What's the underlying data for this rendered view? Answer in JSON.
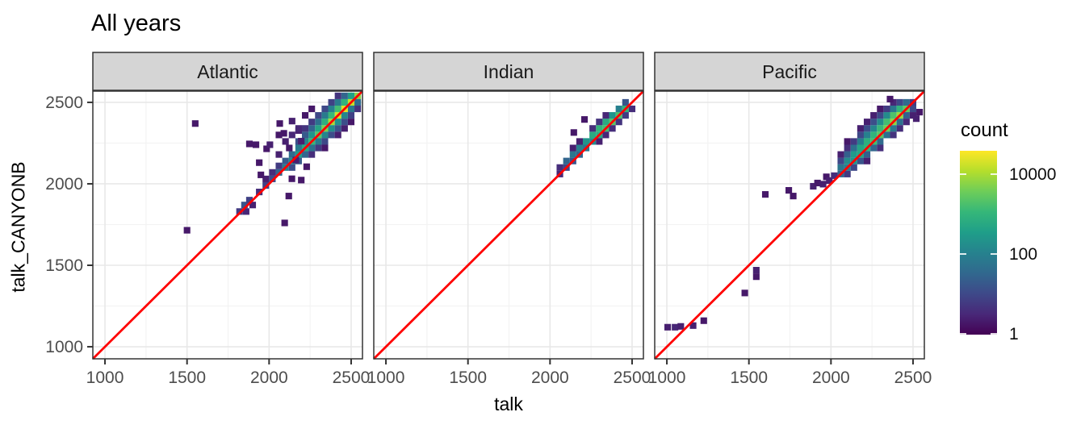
{
  "title": "All years",
  "axes": {
    "x_title": "talk",
    "y_title": "talk_CANYONB",
    "x_ticks": [
      1000,
      1500,
      2000,
      2500
    ],
    "y_ticks": [
      1000,
      1500,
      2000,
      2500
    ],
    "minor_ticks": [
      1250,
      1750,
      2250
    ],
    "domain": [
      926,
      2569
    ]
  },
  "legend": {
    "title": "count",
    "ticks": [
      {
        "label": "10000",
        "log10": 4
      },
      {
        "label": "100",
        "log10": 2
      },
      {
        "label": "1",
        "log10": 0
      }
    ],
    "max_log10": 4.6,
    "scale": "log10",
    "viridis_stops": [
      "#440154",
      "#482878",
      "#3e4989",
      "#31688e",
      "#26828e",
      "#1f9e89",
      "#35b779",
      "#6dcd59",
      "#b4de2c",
      "#fde725"
    ]
  },
  "colors": {
    "identity_line": "#ff0000",
    "strip_fill": "#d5d5d5",
    "strip_text": "#1a1a1a",
    "panel_border": "#333333",
    "grid_major": "#e8e8e8",
    "grid_minor": "#f3f3f3",
    "tick_mark": "#333333",
    "tick_text": "#4d4d4d"
  },
  "chart_data": {
    "type": "heatmap",
    "subtype": "bin2d",
    "title": "All years",
    "xlabel": "talk",
    "ylabel": "talk_CANYONB",
    "xlim": [
      926,
      2569
    ],
    "ylim": [
      926,
      2569
    ],
    "bin_size": 40,
    "bin_value_units": "log10(count)",
    "legend_title": "count",
    "identity_line": {
      "slope": 1,
      "intercept": 0,
      "color": "#ff0000"
    },
    "facets": [
      {
        "label": "Atlantic",
        "bins": [
          [
            2100,
            2100,
            2
          ],
          [
            2140,
            2140,
            2.2
          ],
          [
            2180,
            2180,
            2.5
          ],
          [
            2220,
            2220,
            2.8
          ],
          [
            2260,
            2260,
            3.1
          ],
          [
            2300,
            2300,
            3.4
          ],
          [
            2340,
            2340,
            3.7
          ],
          [
            2380,
            2380,
            4
          ],
          [
            2420,
            2420,
            4.3
          ],
          [
            2460,
            2460,
            4.4
          ],
          [
            2500,
            2500,
            4.2
          ],
          [
            2540,
            2540,
            3.8
          ],
          [
            2100,
            2140,
            1.3
          ],
          [
            2140,
            2180,
            1.6
          ],
          [
            2180,
            2220,
            1.9
          ],
          [
            2220,
            2260,
            2.1
          ],
          [
            2260,
            2300,
            2.4
          ],
          [
            2300,
            2340,
            2.7
          ],
          [
            2340,
            2380,
            2.9
          ],
          [
            2380,
            2420,
            3.1
          ],
          [
            2420,
            2460,
            3.2
          ],
          [
            2460,
            2500,
            3
          ],
          [
            2500,
            2540,
            2.6
          ],
          [
            2180,
            2260,
            1.1
          ],
          [
            2220,
            2300,
            1.3
          ],
          [
            2260,
            2340,
            1.5
          ],
          [
            2300,
            2380,
            1.7
          ],
          [
            2340,
            2420,
            1.9
          ],
          [
            2380,
            2460,
            2
          ],
          [
            2420,
            2500,
            1.9
          ],
          [
            2460,
            2540,
            1.5
          ],
          [
            2220,
            2340,
            0.7
          ],
          [
            2260,
            2380,
            0.8
          ],
          [
            2300,
            2420,
            1
          ],
          [
            2340,
            2460,
            1
          ],
          [
            2380,
            2500,
            0.9
          ],
          [
            2420,
            2540,
            0.7
          ],
          [
            2140,
            2100,
            1.1
          ],
          [
            2180,
            2140,
            1.3
          ],
          [
            2220,
            2180,
            1.5
          ],
          [
            2260,
            2220,
            1.7
          ],
          [
            2300,
            2260,
            1.9
          ],
          [
            2340,
            2300,
            2.1
          ],
          [
            2380,
            2340,
            2.2
          ],
          [
            2420,
            2380,
            2.3
          ],
          [
            2460,
            2420,
            2.1
          ],
          [
            2500,
            2460,
            1.8
          ],
          [
            2540,
            2500,
            1.6
          ],
          [
            2260,
            2180,
            0.6
          ],
          [
            2300,
            2220,
            0.8
          ],
          [
            2340,
            2260,
            1
          ],
          [
            2380,
            2300,
            1.1
          ],
          [
            2420,
            2340,
            1.2
          ],
          [
            2460,
            2380,
            1.1
          ],
          [
            2500,
            2420,
            0.9
          ],
          [
            2540,
            2460,
            0.7
          ],
          [
            2340,
            2220,
            0.3
          ],
          [
            2420,
            2300,
            0.4
          ],
          [
            2460,
            2340,
            0.4
          ],
          [
            2500,
            2380,
            0.3
          ],
          [
            1820,
            1830,
            0.8
          ],
          [
            1850,
            1870,
            1.2
          ],
          [
            1860,
            1830,
            0.5
          ],
          [
            1880,
            1900,
            0.9
          ],
          [
            1900,
            1870,
            0.4
          ],
          [
            1940,
            1950,
            0.6
          ],
          [
            1980,
            1990,
            0.9
          ],
          [
            2020,
            2030,
            1.1
          ],
          [
            2060,
            2070,
            1.5
          ],
          [
            2060,
            2110,
            0.8
          ],
          [
            2020,
            2070,
            0.6
          ],
          [
            1980,
            2030,
            0.4
          ],
          [
            1880,
            2245,
            0.3
          ],
          [
            1920,
            2240,
            0.3
          ],
          [
            1985,
            2215,
            0.3
          ],
          [
            2005,
            2240,
            0.4
          ],
          [
            1940,
            2130,
            0.3
          ],
          [
            1950,
            2055,
            0.3
          ],
          [
            2065,
            2370,
            0.3
          ],
          [
            2090,
            2310,
            0.3
          ],
          [
            2140,
            2385,
            0.4
          ],
          [
            2180,
            2327,
            0.4
          ],
          [
            2123,
            2220,
            0.3
          ],
          [
            2196,
            2262,
            0.4
          ],
          [
            2163,
            2146,
            0.4
          ],
          [
            2229,
            2105,
            0.3
          ],
          [
            2139,
            2031,
            0.3
          ],
          [
            2196,
            2023,
            0.3
          ],
          [
            2100,
            2260,
            0.4
          ],
          [
            2060,
            2180,
            0.4
          ],
          [
            2140,
            2300,
            0.5
          ],
          [
            2180,
            2340,
            0.5
          ],
          [
            2220,
            2420,
            0.3
          ],
          [
            2260,
            2460,
            0.3
          ],
          [
            2060,
            2300,
            0.3
          ],
          [
            1550,
            2370,
            0.3
          ],
          [
            1500,
            1715,
            0.3
          ],
          [
            2120,
            1925,
            0.3
          ],
          [
            2095,
            1760,
            0.3
          ]
        ]
      },
      {
        "label": "Indian",
        "bins": [
          [
            2100,
            2100,
            1
          ],
          [
            2140,
            2140,
            1.2
          ],
          [
            2180,
            2180,
            1.5
          ],
          [
            2220,
            2220,
            1.8
          ],
          [
            2260,
            2260,
            2.2
          ],
          [
            2300,
            2300,
            2.8
          ],
          [
            2340,
            2340,
            3.2
          ],
          [
            2380,
            2380,
            3.4
          ],
          [
            2420,
            2420,
            3.3
          ],
          [
            2460,
            2460,
            3
          ],
          [
            2060,
            2100,
            0.6
          ],
          [
            2100,
            2140,
            1.5
          ],
          [
            2140,
            2180,
            1.8
          ],
          [
            2180,
            2220,
            2
          ],
          [
            2220,
            2260,
            2.4
          ],
          [
            2260,
            2300,
            2.8
          ],
          [
            2300,
            2340,
            3
          ],
          [
            2340,
            2380,
            2.8
          ],
          [
            2380,
            2420,
            2.4
          ],
          [
            2420,
            2460,
            2
          ],
          [
            2460,
            2500,
            1.2
          ],
          [
            2180,
            2260,
            0.4
          ],
          [
            2260,
            2340,
            0.6
          ],
          [
            2300,
            2380,
            0.7
          ],
          [
            2340,
            2420,
            0.5
          ],
          [
            2140,
            2220,
            0.4
          ],
          [
            2300,
            2260,
            0.4
          ],
          [
            2340,
            2300,
            0.5
          ],
          [
            2380,
            2340,
            0.6
          ],
          [
            2420,
            2380,
            0.7
          ],
          [
            2460,
            2420,
            0.8
          ],
          [
            2500,
            2460,
            0.6
          ],
          [
            2060,
            2060,
            0.5
          ],
          [
            2210,
            2395,
            0.3
          ],
          [
            2145,
            2315,
            0.3
          ]
        ]
      },
      {
        "label": "Pacific",
        "bins": [
          [
            2060,
            2060,
            1.5
          ],
          [
            2100,
            2100,
            2
          ],
          [
            2140,
            2140,
            2.4
          ],
          [
            2180,
            2180,
            2.7
          ],
          [
            2220,
            2220,
            3
          ],
          [
            2260,
            2260,
            3.2
          ],
          [
            2300,
            2300,
            3.4
          ],
          [
            2340,
            2340,
            3.6
          ],
          [
            2380,
            2380,
            3.8
          ],
          [
            2420,
            2420,
            3.9
          ],
          [
            2460,
            2460,
            3.5
          ],
          [
            2060,
            2100,
            1.8
          ],
          [
            2100,
            2140,
            2.2
          ],
          [
            2140,
            2180,
            2.5
          ],
          [
            2180,
            2220,
            2.7
          ],
          [
            2220,
            2260,
            2.9
          ],
          [
            2260,
            2300,
            3
          ],
          [
            2300,
            2340,
            3.1
          ],
          [
            2340,
            2380,
            3.2
          ],
          [
            2380,
            2420,
            3.3
          ],
          [
            2420,
            2460,
            3
          ],
          [
            2460,
            2500,
            1.6
          ],
          [
            2060,
            2140,
            1
          ],
          [
            2100,
            2180,
            1.4
          ],
          [
            2140,
            2220,
            1.7
          ],
          [
            2180,
            2260,
            1.9
          ],
          [
            2220,
            2300,
            2
          ],
          [
            2260,
            2340,
            2.1
          ],
          [
            2300,
            2380,
            2.2
          ],
          [
            2340,
            2420,
            2.2
          ],
          [
            2380,
            2460,
            1.8
          ],
          [
            2420,
            2500,
            1
          ],
          [
            2100,
            2220,
            0.6
          ],
          [
            2140,
            2260,
            0.8
          ],
          [
            2180,
            2300,
            1
          ],
          [
            2220,
            2340,
            1.1
          ],
          [
            2260,
            2380,
            1.1
          ],
          [
            2300,
            2420,
            1
          ],
          [
            2340,
            2460,
            0.8
          ],
          [
            2380,
            2500,
            0.5
          ],
          [
            2180,
            2340,
            0.4
          ],
          [
            2220,
            2380,
            0.4
          ],
          [
            2260,
            2420,
            0.4
          ],
          [
            2300,
            2460,
            0.3
          ],
          [
            2060,
            2180,
            0.4
          ],
          [
            2100,
            2260,
            0.3
          ],
          [
            2100,
            2060,
            0.8
          ],
          [
            2140,
            2100,
            1
          ],
          [
            2180,
            2140,
            1.2
          ],
          [
            2220,
            2180,
            1.4
          ],
          [
            2260,
            2220,
            1.5
          ],
          [
            2300,
            2260,
            1.6
          ],
          [
            2340,
            2300,
            1.7
          ],
          [
            2380,
            2340,
            1.8
          ],
          [
            2420,
            2380,
            1.7
          ],
          [
            2460,
            2420,
            1.4
          ],
          [
            2500,
            2460,
            1
          ],
          [
            2220,
            2140,
            0.4
          ],
          [
            2300,
            2220,
            0.6
          ],
          [
            2380,
            2300,
            0.7
          ],
          [
            2420,
            2340,
            0.6
          ],
          [
            2460,
            2380,
            0.5
          ],
          [
            2500,
            2420,
            0.4
          ],
          [
            2500,
            2500,
            0.8
          ],
          [
            2520,
            2400,
            0.4
          ],
          [
            2540,
            2440,
            0.3
          ],
          [
            2360,
            2520,
            0.3
          ],
          [
            1892,
            1985,
            0.4
          ],
          [
            1918,
            2005,
            0.3
          ],
          [
            1952,
            1998,
            0.4
          ],
          [
            1972,
            2043,
            0.3
          ],
          [
            1990,
            2020,
            0.4
          ],
          [
            2020,
            2050,
            0.6
          ],
          [
            1005,
            1120,
            0.4
          ],
          [
            1050,
            1120,
            0.5
          ],
          [
            1085,
            1125,
            0.4
          ],
          [
            1160,
            1130,
            0.4
          ],
          [
            1225,
            1160,
            0.3
          ],
          [
            1475,
            1330,
            0.3
          ],
          [
            1545,
            1470,
            0.4
          ],
          [
            1545,
            1430,
            0.3
          ],
          [
            1600,
            1935,
            0.3
          ],
          [
            1743,
            1960,
            0.3
          ],
          [
            1770,
            1925,
            0.3
          ]
        ]
      }
    ]
  }
}
